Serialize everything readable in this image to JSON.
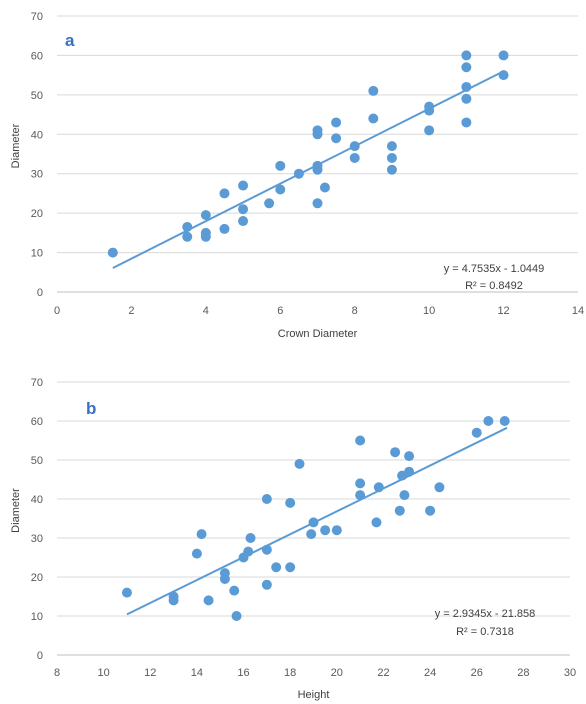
{
  "colors": {
    "points": "#5B9BD5",
    "trendline": "#5B9BD5",
    "grid": "#D9D9D9",
    "axis_text": "#595959",
    "panel_letter": "#3A6FC4"
  },
  "chart_data": [
    {
      "type": "scatter",
      "panel_label": "a",
      "xlabel": "Crown Diameter",
      "ylabel": "Diameter",
      "xlim": [
        0,
        14
      ],
      "ylim": [
        0,
        70
      ],
      "xticks": [
        "0",
        "2",
        "4",
        "6",
        "8",
        "10",
        "12",
        "14"
      ],
      "yticks": [
        "0",
        "10",
        "20",
        "30",
        "40",
        "50",
        "60",
        "70"
      ],
      "grid": true,
      "trendline": {
        "slope": 4.7535,
        "intercept": -1.0449,
        "x_range": [
          1.5,
          12
        ]
      },
      "equation": "y = 4.7535x - 1.0449",
      "r2": "R² = 0.8492",
      "points": [
        [
          1.5,
          10
        ],
        [
          3.5,
          14
        ],
        [
          3.5,
          16.5
        ],
        [
          4,
          14
        ],
        [
          4,
          15
        ],
        [
          4,
          19.5
        ],
        [
          4.5,
          16
        ],
        [
          4.5,
          25
        ],
        [
          5,
          18
        ],
        [
          5,
          21
        ],
        [
          5,
          27
        ],
        [
          5.7,
          22.5
        ],
        [
          6,
          26
        ],
        [
          6,
          32
        ],
        [
          6.5,
          30
        ],
        [
          7,
          22.5
        ],
        [
          7,
          31
        ],
        [
          7,
          32
        ],
        [
          7,
          40
        ],
        [
          7,
          41
        ],
        [
          7.2,
          26.5
        ],
        [
          7.5,
          39
        ],
        [
          7.5,
          43
        ],
        [
          8,
          34
        ],
        [
          8,
          37
        ],
        [
          8.5,
          44
        ],
        [
          8.5,
          51
        ],
        [
          9,
          31
        ],
        [
          9,
          34
        ],
        [
          9,
          37
        ],
        [
          10,
          41
        ],
        [
          10,
          46
        ],
        [
          10,
          47
        ],
        [
          11,
          43
        ],
        [
          11,
          49
        ],
        [
          11,
          52
        ],
        [
          11,
          57
        ],
        [
          11,
          60
        ],
        [
          12,
          55
        ],
        [
          12,
          60
        ]
      ]
    },
    {
      "type": "scatter",
      "panel_label": "b",
      "xlabel": "Height",
      "ylabel": "Diameter",
      "xlim": [
        8,
        30
      ],
      "ylim": [
        0,
        70
      ],
      "xticks": [
        "8",
        "10",
        "12",
        "14",
        "16",
        "18",
        "20",
        "22",
        "24",
        "26",
        "28",
        "30"
      ],
      "yticks": [
        "0",
        "10",
        "20",
        "30",
        "40",
        "50",
        "60",
        "70"
      ],
      "grid": true,
      "trendline": {
        "slope": 2.9345,
        "intercept": -21.858,
        "x_range": [
          11,
          27.3
        ]
      },
      "equation": "y = 2.9345x - 21.858",
      "r2": "R² = 0.7318",
      "points": [
        [
          11,
          16
        ],
        [
          13,
          14
        ],
        [
          13,
          15
        ],
        [
          14,
          26
        ],
        [
          14.2,
          31
        ],
        [
          14.5,
          14
        ],
        [
          15.2,
          19.5
        ],
        [
          15.2,
          21
        ],
        [
          15.6,
          16.5
        ],
        [
          15.7,
          10
        ],
        [
          16,
          25
        ],
        [
          16.2,
          26.5
        ],
        [
          16.3,
          30
        ],
        [
          17,
          18
        ],
        [
          17,
          27
        ],
        [
          17,
          40
        ],
        [
          17.4,
          22.5
        ],
        [
          18,
          22.5
        ],
        [
          18,
          39
        ],
        [
          18.4,
          49
        ],
        [
          18.9,
          31
        ],
        [
          19,
          34
        ],
        [
          19.5,
          32
        ],
        [
          20,
          32
        ],
        [
          21,
          41
        ],
        [
          21,
          44
        ],
        [
          21,
          55
        ],
        [
          21.7,
          34
        ],
        [
          21.8,
          43
        ],
        [
          22.5,
          52
        ],
        [
          22.7,
          37
        ],
        [
          22.8,
          46
        ],
        [
          22.9,
          41
        ],
        [
          23.1,
          47
        ],
        [
          23.1,
          51
        ],
        [
          24,
          37
        ],
        [
          24.4,
          43
        ],
        [
          26,
          57
        ],
        [
          26.5,
          60
        ],
        [
          27.2,
          60
        ]
      ]
    }
  ]
}
